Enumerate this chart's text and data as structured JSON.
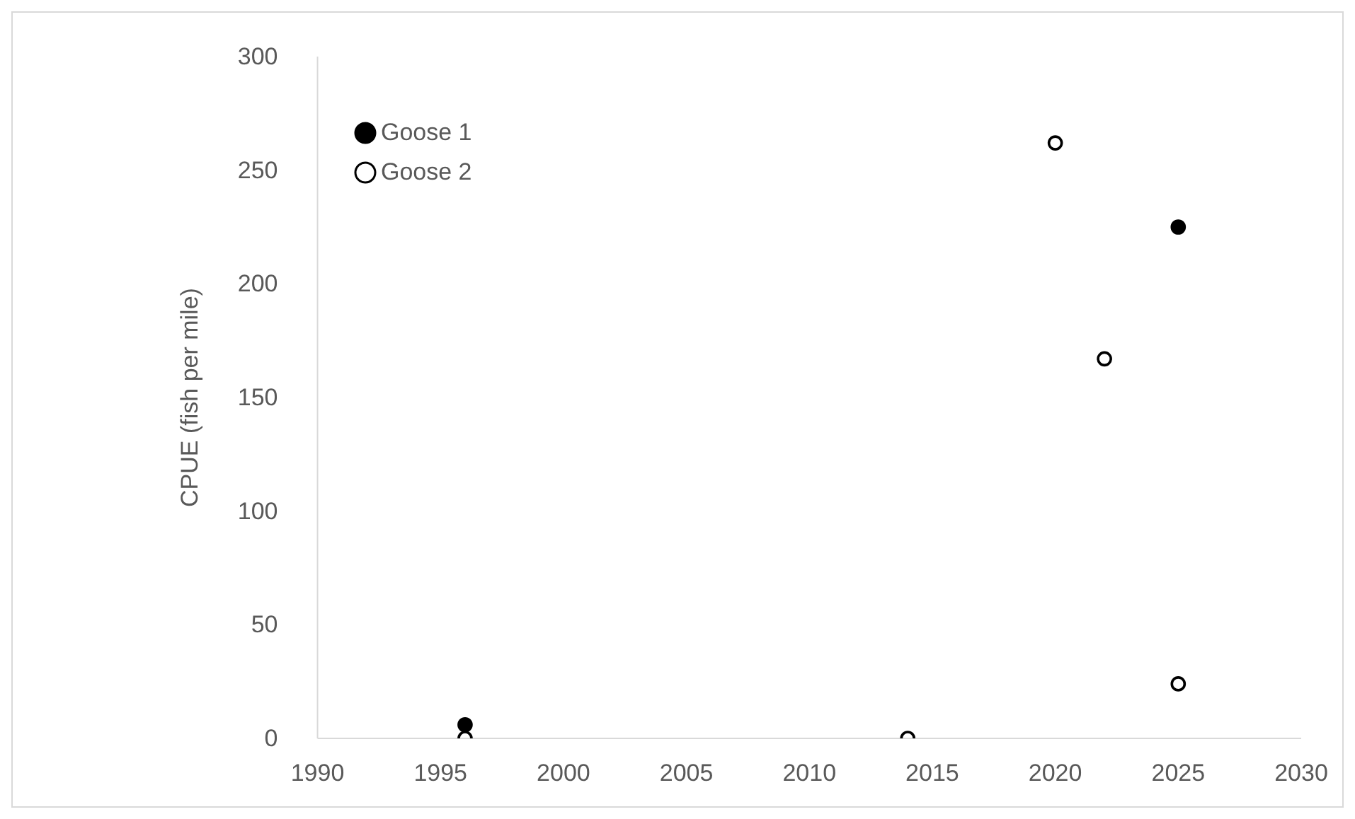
{
  "chart_data": {
    "type": "scatter",
    "ylabel": "CPUE (fish per mile)",
    "xlim": [
      1990,
      2030
    ],
    "xticks": [
      1990,
      1995,
      2000,
      2005,
      2010,
      2015,
      2020,
      2025,
      2030
    ],
    "ylim": [
      0,
      300
    ],
    "yticks": [
      0,
      50,
      100,
      150,
      200,
      250,
      300
    ],
    "grid": false,
    "legend": "top left",
    "marker": "circle",
    "series": [
      {
        "name": "Goose 1",
        "color": "#000000",
        "x": [
          1996,
          2025
        ],
        "values": [
          6,
          225
        ]
      },
      {
        "name": "Goose 2",
        "color": "#000000",
        "x": [
          1996,
          2014,
          2020,
          2022,
          2025
        ],
        "values": [
          0,
          0,
          262,
          167,
          24
        ]
      }
    ]
  }
}
